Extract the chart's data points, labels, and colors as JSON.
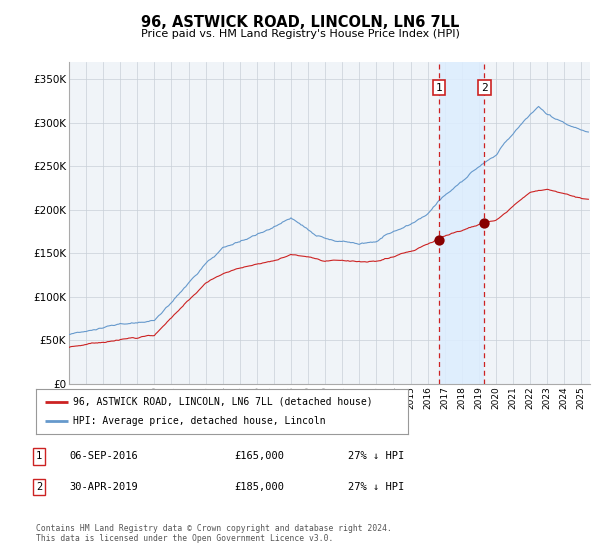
{
  "title": "96, ASTWICK ROAD, LINCOLN, LN6 7LL",
  "subtitle": "Price paid vs. HM Land Registry's House Price Index (HPI)",
  "hpi_color": "#6699cc",
  "price_color": "#cc2222",
  "dot_color": "#880000",
  "shade_color": "#ddeeff",
  "dashed_color": "#cc2222",
  "bg_color": "#f0f4f8",
  "grid_color": "#c8d0d8",
  "ylim": [
    0,
    370000
  ],
  "yticks": [
    0,
    50000,
    100000,
    150000,
    200000,
    250000,
    300000,
    350000
  ],
  "ytick_labels": [
    "£0",
    "£50K",
    "£100K",
    "£150K",
    "£200K",
    "£250K",
    "£300K",
    "£350K"
  ],
  "transaction1_date": 2016.67,
  "transaction1_price": 165000,
  "transaction2_date": 2019.33,
  "transaction2_price": 185000,
  "legend_line1": "96, ASTWICK ROAD, LINCOLN, LN6 7LL (detached house)",
  "legend_line2": "HPI: Average price, detached house, Lincoln",
  "table_row1": [
    "1",
    "06-SEP-2016",
    "£165,000",
    "27% ↓ HPI"
  ],
  "table_row2": [
    "2",
    "30-APR-2019",
    "£185,000",
    "27% ↓ HPI"
  ],
  "footer": "Contains HM Land Registry data © Crown copyright and database right 2024.\nThis data is licensed under the Open Government Licence v3.0.",
  "xstart": 1995.0,
  "xend": 2025.5
}
